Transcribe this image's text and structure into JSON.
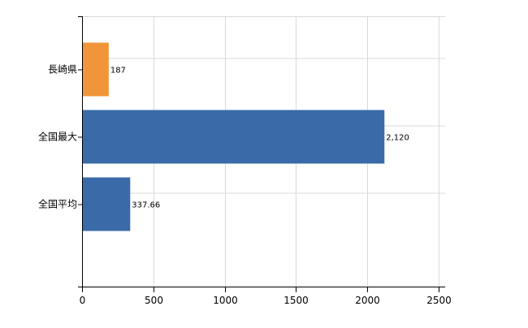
{
  "chart_data": {
    "type": "bar",
    "orientation": "horizontal",
    "title": "",
    "xlabel": "",
    "ylabel": "",
    "categories": [
      "長崎県",
      "全国最大",
      "全国平均"
    ],
    "values": [
      187,
      2120,
      337.66
    ],
    "value_labels": [
      "187",
      "2,120",
      "337.66"
    ],
    "bar_colors": [
      "#f0953a",
      "#3a6ba8",
      "#3a6ba8"
    ],
    "xlim": [
      0,
      2500
    ],
    "xticks": [
      0,
      500,
      1000,
      1500,
      2000,
      2500
    ],
    "xtick_labels": [
      "0",
      "500",
      "1000",
      "1500",
      "2000",
      "2500"
    ],
    "grid": true,
    "legend": "none"
  }
}
